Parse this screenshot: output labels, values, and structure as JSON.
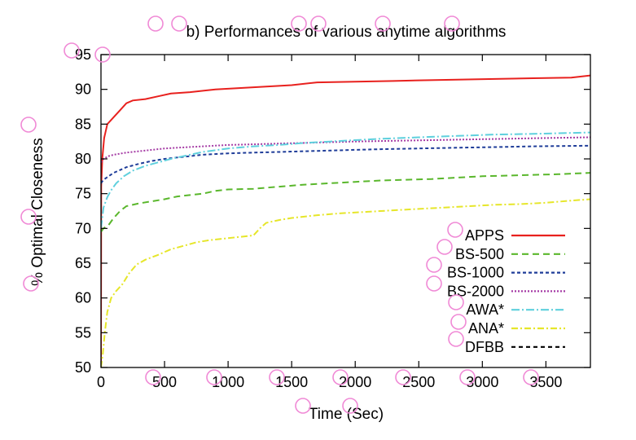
{
  "chart_data": {
    "type": "line",
    "title": "b) Performances of various anytime algorithms",
    "xlabel": "Time (Sec)",
    "ylabel": "% Optimal Closeness",
    "xlim": [
      0,
      3850
    ],
    "ylim": [
      50,
      95
    ],
    "xticks": [
      0,
      500,
      1000,
      1500,
      2000,
      2500,
      3000,
      3500
    ],
    "yticks": [
      50,
      55,
      60,
      65,
      70,
      75,
      80,
      85,
      90,
      95
    ],
    "grid": false,
    "legend_position": "bottom-right",
    "series": [
      {
        "name": "APPS",
        "color": "#e8211e",
        "dash": "solid",
        "points": [
          [
            0,
            50
          ],
          [
            2,
            76
          ],
          [
            10,
            80
          ],
          [
            25,
            83
          ],
          [
            50,
            85
          ],
          [
            100,
            86
          ],
          [
            150,
            87
          ],
          [
            200,
            88
          ],
          [
            250,
            88.4
          ],
          [
            350,
            88.6
          ],
          [
            450,
            89
          ],
          [
            550,
            89.4
          ],
          [
            700,
            89.6
          ],
          [
            900,
            90
          ],
          [
            1100,
            90.2
          ],
          [
            1300,
            90.4
          ],
          [
            1500,
            90.6
          ],
          [
            1700,
            91
          ],
          [
            2000,
            91.1
          ],
          [
            2300,
            91.2
          ],
          [
            2500,
            91.3
          ],
          [
            2800,
            91.4
          ],
          [
            3100,
            91.5
          ],
          [
            3400,
            91.6
          ],
          [
            3700,
            91.7
          ],
          [
            3850,
            92
          ]
        ]
      },
      {
        "name": "BS-500",
        "color": "#5ab72c",
        "dash": "8,5",
        "points": [
          [
            0,
            69.5
          ],
          [
            20,
            70
          ],
          [
            60,
            70.5
          ],
          [
            100,
            71.5
          ],
          [
            150,
            72.5
          ],
          [
            200,
            73.2
          ],
          [
            300,
            73.6
          ],
          [
            400,
            73.9
          ],
          [
            500,
            74.2
          ],
          [
            600,
            74.6
          ],
          [
            700,
            74.8
          ],
          [
            800,
            75
          ],
          [
            900,
            75.4
          ],
          [
            1000,
            75.6
          ],
          [
            1200,
            75.7
          ],
          [
            1400,
            76
          ],
          [
            1600,
            76.3
          ],
          [
            1800,
            76.5
          ],
          [
            2000,
            76.7
          ],
          [
            2200,
            76.9
          ],
          [
            2400,
            77
          ],
          [
            2600,
            77.1
          ],
          [
            2800,
            77.3
          ],
          [
            3000,
            77.5
          ],
          [
            3200,
            77.6
          ],
          [
            3400,
            77.7
          ],
          [
            3600,
            77.8
          ],
          [
            3850,
            78
          ]
        ]
      },
      {
        "name": "BS-1000",
        "color": "#1f3d99",
        "dash": "4,3",
        "points": [
          [
            0,
            76.5
          ],
          [
            20,
            77
          ],
          [
            60,
            77.5
          ],
          [
            100,
            78
          ],
          [
            200,
            78.8
          ],
          [
            300,
            79.3
          ],
          [
            400,
            79.7
          ],
          [
            500,
            80
          ],
          [
            600,
            80.2
          ],
          [
            700,
            80.4
          ],
          [
            800,
            80.6
          ],
          [
            1000,
            80.8
          ],
          [
            1200,
            80.9
          ],
          [
            1400,
            81
          ],
          [
            1600,
            81.1
          ],
          [
            1800,
            81.2
          ],
          [
            2000,
            81.3
          ],
          [
            2200,
            81.4
          ],
          [
            2500,
            81.5
          ],
          [
            2800,
            81.6
          ],
          [
            3100,
            81.7
          ],
          [
            3400,
            81.8
          ],
          [
            3850,
            81.9
          ]
        ]
      },
      {
        "name": "BS-2000",
        "color": "#a53ca5",
        "dash": "2,2",
        "points": [
          [
            0,
            79.5
          ],
          [
            20,
            80
          ],
          [
            60,
            80.4
          ],
          [
            100,
            80.6
          ],
          [
            200,
            80.9
          ],
          [
            300,
            81.1
          ],
          [
            400,
            81.3
          ],
          [
            500,
            81.5
          ],
          [
            600,
            81.6
          ],
          [
            800,
            81.8
          ],
          [
            1000,
            82
          ],
          [
            1200,
            82.1
          ],
          [
            1400,
            82.2
          ],
          [
            1600,
            82.3
          ],
          [
            1800,
            82.4
          ],
          [
            2000,
            82.5
          ],
          [
            2300,
            82.6
          ],
          [
            2600,
            82.7
          ],
          [
            2900,
            82.8
          ],
          [
            3200,
            82.9
          ],
          [
            3500,
            83
          ],
          [
            3850,
            83.1
          ]
        ]
      },
      {
        "name": "AWA*",
        "color": "#5fd0dd",
        "dash": "10,3,2,3",
        "points": [
          [
            0,
            70
          ],
          [
            20,
            73
          ],
          [
            50,
            74.5
          ],
          [
            80,
            75.5
          ],
          [
            120,
            76.5
          ],
          [
            180,
            77.5
          ],
          [
            250,
            78.3
          ],
          [
            350,
            79
          ],
          [
            450,
            79.5
          ],
          [
            550,
            80
          ],
          [
            650,
            80.4
          ],
          [
            800,
            81
          ],
          [
            1000,
            81.5
          ],
          [
            1200,
            81.8
          ],
          [
            1400,
            82
          ],
          [
            1600,
            82.3
          ],
          [
            1800,
            82.5
          ],
          [
            2000,
            82.7
          ],
          [
            2200,
            82.9
          ],
          [
            2500,
            83.1
          ],
          [
            2800,
            83.3
          ],
          [
            3100,
            83.5
          ],
          [
            3400,
            83.6
          ],
          [
            3850,
            83.8
          ]
        ]
      },
      {
        "name": "ANA*",
        "color": "#e6e62a",
        "dash": "8,3,2,3",
        "points": [
          [
            0,
            50
          ],
          [
            15,
            52
          ],
          [
            30,
            55
          ],
          [
            50,
            58
          ],
          [
            80,
            60
          ],
          [
            120,
            61
          ],
          [
            170,
            62
          ],
          [
            220,
            63.5
          ],
          [
            280,
            64.8
          ],
          [
            350,
            65.5
          ],
          [
            450,
            66.2
          ],
          [
            550,
            67
          ],
          [
            650,
            67.5
          ],
          [
            750,
            68
          ],
          [
            850,
            68.3
          ],
          [
            1000,
            68.6
          ],
          [
            1100,
            68.8
          ],
          [
            1200,
            69
          ],
          [
            1250,
            70
          ],
          [
            1300,
            70.8
          ],
          [
            1400,
            71.2
          ],
          [
            1500,
            71.5
          ],
          [
            1700,
            71.9
          ],
          [
            1900,
            72.2
          ],
          [
            2100,
            72.4
          ],
          [
            2300,
            72.6
          ],
          [
            2500,
            72.8
          ],
          [
            2700,
            73
          ],
          [
            2900,
            73.2
          ],
          [
            3100,
            73.4
          ],
          [
            3300,
            73.5
          ],
          [
            3500,
            73.7
          ],
          [
            3700,
            74
          ],
          [
            3850,
            74.2
          ]
        ]
      },
      {
        "name": "DFBB",
        "color": "#000000",
        "dash": "5,4",
        "points": []
      }
    ]
  }
}
